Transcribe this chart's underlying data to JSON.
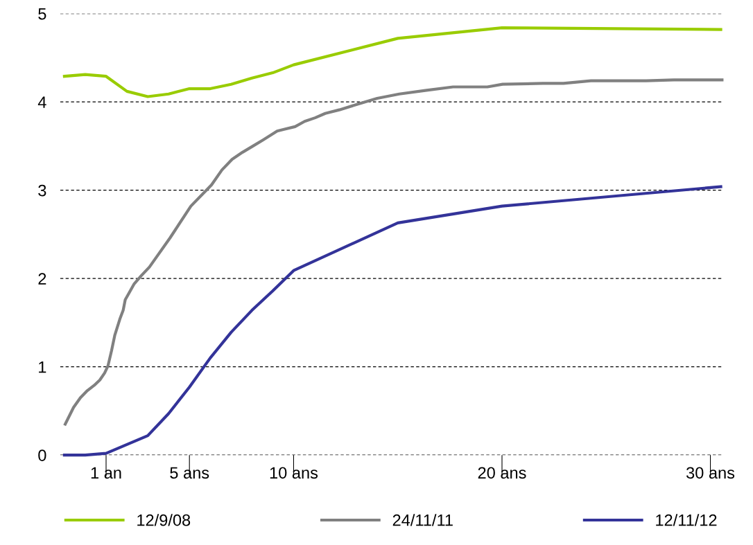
{
  "chart_data": {
    "type": "line",
    "xlim": [
      -1.2,
      30.6
    ],
    "ylim": [
      0,
      5
    ],
    "yticks": [
      0,
      1,
      2,
      3,
      4,
      5
    ],
    "xticks": [
      {
        "value": 1,
        "label": "1 an"
      },
      {
        "value": 5,
        "label": "5 ans"
      },
      {
        "value": 10,
        "label": "10 ans"
      },
      {
        "value": 20,
        "label": "20 ans"
      },
      {
        "value": 30,
        "label": "30 ans"
      }
    ],
    "grid": "y",
    "legend": "bottom",
    "marker": "none",
    "line_style": "solid",
    "series": [
      {
        "name": "12/9/08",
        "color": "#99cc00",
        "x": [
          -1,
          0,
          1,
          2,
          3,
          4,
          5,
          6,
          7,
          8,
          9,
          10,
          15,
          20,
          30.5
        ],
        "values": [
          4.29,
          4.31,
          4.29,
          4.12,
          4.06,
          4.09,
          4.15,
          4.15,
          4.2,
          4.27,
          4.33,
          4.42,
          4.72,
          4.84,
          4.82
        ]
      },
      {
        "name": "24/11/11",
        "color": "#808080",
        "x": [
          -0.96,
          -0.56,
          -0.23,
          0.1,
          0.43,
          0.7,
          0.93,
          1.09,
          1.26,
          1.42,
          1.66,
          1.82,
          1.92,
          2.09,
          2.35,
          2.68,
          3.08,
          4.07,
          5.07,
          6.06,
          6.56,
          7.05,
          7.55,
          8.05,
          8.54,
          9.21,
          9.54,
          10.07,
          10.53,
          11.03,
          11.52,
          12.19,
          13.01,
          14.01,
          15.07,
          16.32,
          17.65,
          19.3,
          20.03,
          21.95,
          22.95,
          24.27,
          26.92,
          28.25,
          30.56
        ],
        "values": [
          0.35,
          0.54,
          0.65,
          0.73,
          0.79,
          0.85,
          0.93,
          1.01,
          1.18,
          1.36,
          1.54,
          1.64,
          1.76,
          1.83,
          1.94,
          2.03,
          2.13,
          2.46,
          2.82,
          3.06,
          3.23,
          3.35,
          3.43,
          3.5,
          3.57,
          3.67,
          3.69,
          3.72,
          3.78,
          3.82,
          3.87,
          3.91,
          3.97,
          4.04,
          4.09,
          4.13,
          4.17,
          4.17,
          4.2,
          4.21,
          4.21,
          4.24,
          4.24,
          4.25,
          4.25
        ]
      },
      {
        "name": "12/11/12",
        "color": "#333399",
        "x": [
          -1,
          0,
          1,
          2,
          3,
          4,
          5,
          6,
          7,
          8,
          9,
          10,
          15,
          20,
          30.5
        ],
        "values": [
          0,
          0,
          0.02,
          0.12,
          0.22,
          0.47,
          0.77,
          1.1,
          1.39,
          1.64,
          1.86,
          2.09,
          2.63,
          2.82,
          3.04
        ]
      }
    ]
  }
}
